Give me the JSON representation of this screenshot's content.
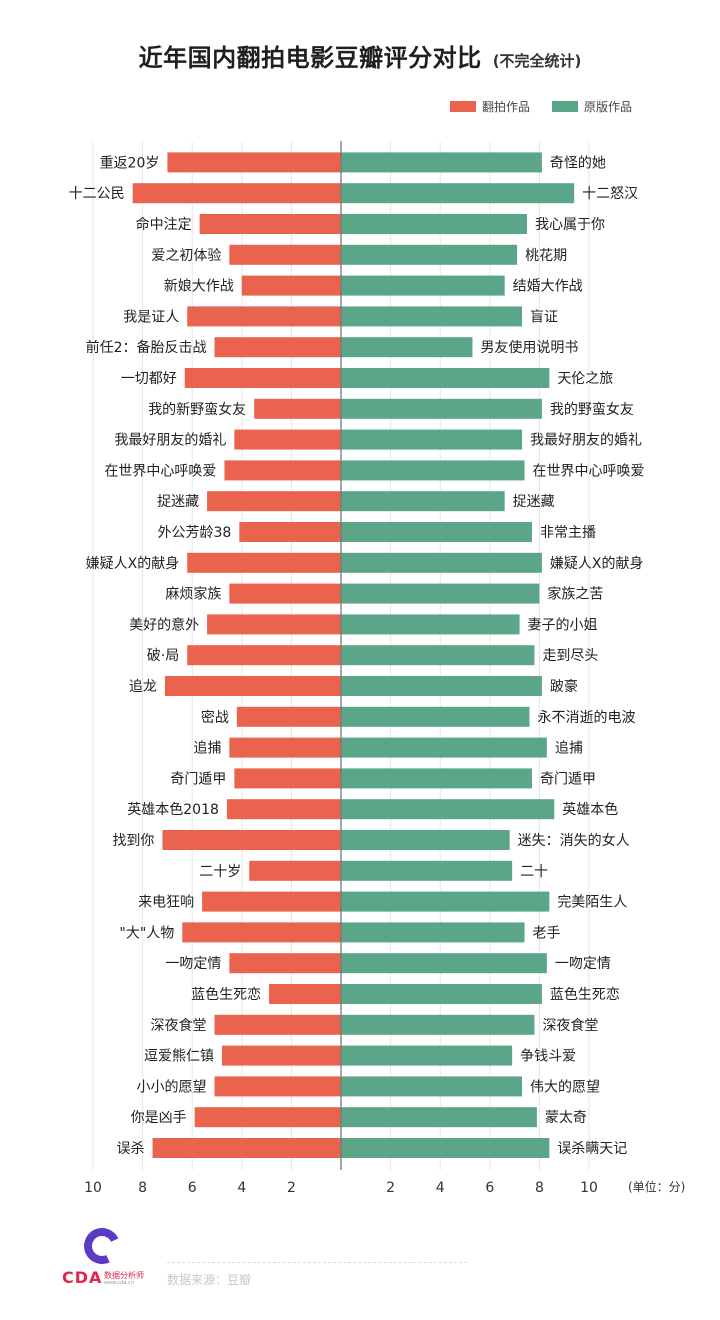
{
  "title": "近年国内翻拍电影豆瓣评分对比",
  "subtitle": "(不完全统计)",
  "legend": {
    "remake": {
      "label": "翻拍作品",
      "color": "#e9634e"
    },
    "original": {
      "label": "原版作品",
      "color": "#5ba589"
    }
  },
  "source": "数据来源：豆瓣",
  "logo": {
    "text": "CDA",
    "tagline": "数据分析师",
    "url": "www.cda.cn"
  },
  "chart_data": {
    "type": "bar",
    "orientation": "horizontal-diverging",
    "unit_label": "(单位：分)",
    "xlim": [
      0,
      10
    ],
    "left_ticks": [
      "10",
      "8",
      "6",
      "4",
      "2"
    ],
    "right_ticks": [
      "2",
      "4",
      "6",
      "8",
      "10"
    ],
    "pairs": [
      {
        "remake": "重返20岁",
        "remake_score": 7.0,
        "original": "奇怪的她",
        "original_score": 8.1
      },
      {
        "remake": "十二公民",
        "remake_score": 8.4,
        "original": "十二怒汉",
        "original_score": 9.4
      },
      {
        "remake": "命中注定",
        "remake_score": 5.7,
        "original": "我心属于你",
        "original_score": 7.5
      },
      {
        "remake": "爱之初体验",
        "remake_score": 4.5,
        "original": "桃花期",
        "original_score": 7.1
      },
      {
        "remake": "新娘大作战",
        "remake_score": 4.0,
        "original": "结婚大作战",
        "original_score": 6.6
      },
      {
        "remake": "我是证人",
        "remake_score": 6.2,
        "original": "盲证",
        "original_score": 7.3
      },
      {
        "remake": "前任2：备胎反击战",
        "remake_score": 5.1,
        "original": "男友使用说明书",
        "original_score": 5.3
      },
      {
        "remake": "一切都好",
        "remake_score": 6.3,
        "original": "天伦之旅",
        "original_score": 8.4
      },
      {
        "remake": "我的新野蛮女友",
        "remake_score": 3.5,
        "original": "我的野蛮女友",
        "original_score": 8.1
      },
      {
        "remake": "我最好朋友的婚礼",
        "remake_score": 4.3,
        "original": "我最好朋友的婚礼",
        "original_score": 7.3
      },
      {
        "remake": "在世界中心呼唤爱",
        "remake_score": 4.7,
        "original": "在世界中心呼唤爱",
        "original_score": 7.4
      },
      {
        "remake": "捉迷藏",
        "remake_score": 5.4,
        "original": "捉迷藏",
        "original_score": 6.6
      },
      {
        "remake": "外公芳龄38",
        "remake_score": 4.1,
        "original": "非常主播",
        "original_score": 7.7
      },
      {
        "remake": "嫌疑人X的献身",
        "remake_score": 6.2,
        "original": "嫌疑人X的献身",
        "original_score": 8.1
      },
      {
        "remake": "麻烦家族",
        "remake_score": 4.5,
        "original": "家族之苦",
        "original_score": 8.0
      },
      {
        "remake": "美好的意外",
        "remake_score": 5.4,
        "original": "妻子的小姐",
        "original_score": 7.2
      },
      {
        "remake": "破·局",
        "remake_score": 6.2,
        "original": "走到尽头",
        "original_score": 7.8
      },
      {
        "remake": "追龙",
        "remake_score": 7.1,
        "original": "跛豪",
        "original_score": 8.1
      },
      {
        "remake": "密战",
        "remake_score": 4.2,
        "original": "永不消逝的电波",
        "original_score": 7.6
      },
      {
        "remake": "追捕",
        "remake_score": 4.5,
        "original": "追捕",
        "original_score": 8.3
      },
      {
        "remake": "奇门遁甲",
        "remake_score": 4.3,
        "original": "奇门遁甲",
        "original_score": 7.7
      },
      {
        "remake": "英雄本色2018",
        "remake_score": 4.6,
        "original": "英雄本色",
        "original_score": 8.6
      },
      {
        "remake": "找到你",
        "remake_score": 7.2,
        "original": "迷失：消失的女人",
        "original_score": 6.8
      },
      {
        "remake": "二十岁",
        "remake_score": 3.7,
        "original": "二十",
        "original_score": 6.9
      },
      {
        "remake": "来电狂响",
        "remake_score": 5.6,
        "original": "完美陌生人",
        "original_score": 8.4
      },
      {
        "remake": "\"大\"人物",
        "remake_score": 6.4,
        "original": "老手",
        "original_score": 7.4
      },
      {
        "remake": "一吻定情",
        "remake_score": 4.5,
        "original": "一吻定情",
        "original_score": 8.3
      },
      {
        "remake": "蓝色生死恋",
        "remake_score": 2.9,
        "original": "蓝色生死恋",
        "original_score": 8.1
      },
      {
        "remake": "深夜食堂",
        "remake_score": 5.1,
        "original": "深夜食堂",
        "original_score": 7.8
      },
      {
        "remake": "逗爱熊仁镇",
        "remake_score": 4.8,
        "original": "争钱斗爱",
        "original_score": 6.9
      },
      {
        "remake": "小小的愿望",
        "remake_score": 5.1,
        "original": "伟大的愿望",
        "original_score": 7.3
      },
      {
        "remake": "你是凶手",
        "remake_score": 5.9,
        "original": "蒙太奇",
        "original_score": 7.9
      },
      {
        "remake": "误杀",
        "remake_score": 7.6,
        "original": "误杀瞒天记",
        "original_score": 8.4
      }
    ]
  }
}
